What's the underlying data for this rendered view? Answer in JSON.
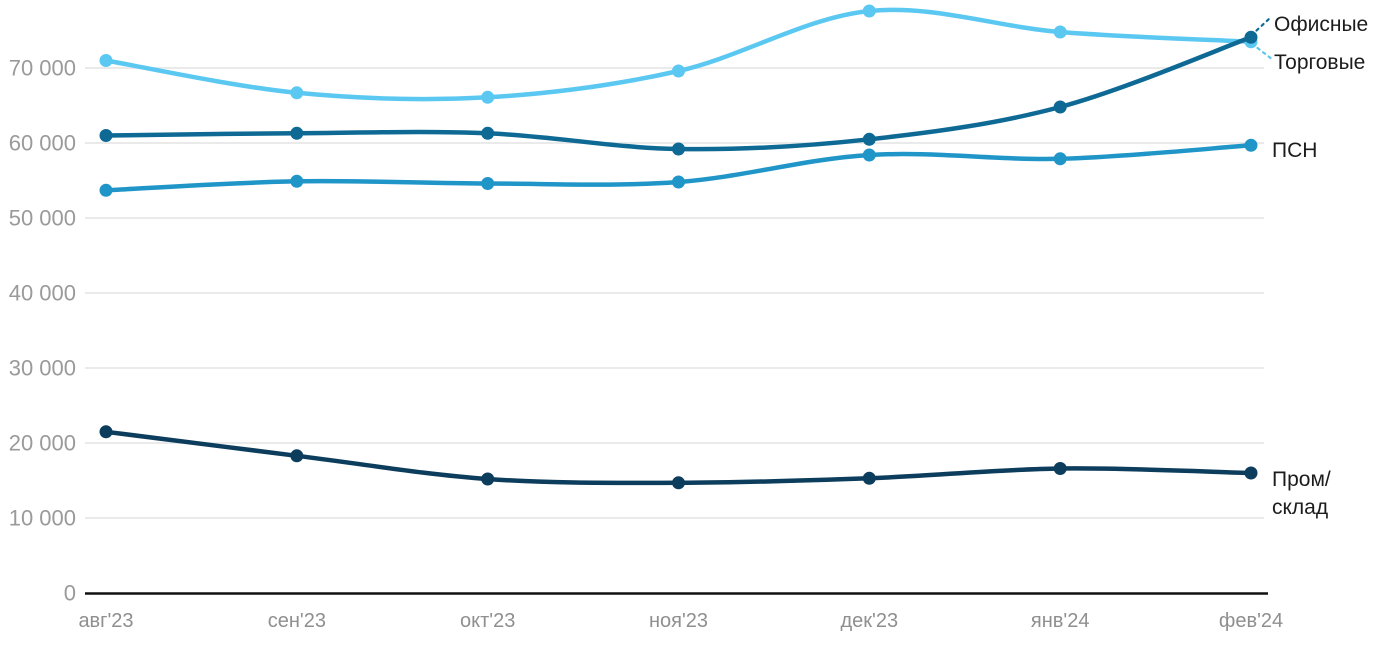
{
  "chart_data": {
    "type": "line",
    "title": "",
    "xlabel": "",
    "ylabel": "",
    "categories": [
      "авг'23",
      "сен'23",
      "окт'23",
      "ноя'23",
      "дек'23",
      "янв'24",
      "фев'24"
    ],
    "series": [
      {
        "id": "retail",
        "name": "Торговые",
        "label_lines": [
          "Торговые"
        ],
        "color": "#5bc8f2",
        "values": [
          71000,
          66700,
          66100,
          69600,
          77600,
          74800,
          73500
        ]
      },
      {
        "id": "psn",
        "name": "ПСН",
        "label_lines": [
          "ПСН"
        ],
        "color": "#2095c8",
        "values": [
          53700,
          54900,
          54600,
          54800,
          58400,
          57900,
          59700
        ]
      },
      {
        "id": "industrial",
        "name": "Пром/склад",
        "label_lines": [
          "Пром/",
          "склад"
        ],
        "color": "#0d3d5c",
        "values": [
          21500,
          18300,
          15200,
          14700,
          15300,
          16600,
          16000
        ]
      },
      {
        "id": "offices",
        "name": "Офисные",
        "label_lines": [
          "Офисные"
        ],
        "color": "#0e6a94",
        "values": [
          61000,
          61300,
          61300,
          59200,
          60500,
          64800,
          74100
        ]
      }
    ],
    "ylim": [
      0,
      80000
    ],
    "yticks": [
      0,
      10000,
      20000,
      30000,
      40000,
      50000,
      60000,
      70000
    ],
    "ytick_labels": [
      "0",
      "10 000",
      "20 000",
      "30 000",
      "40 000",
      "50 000",
      "60 000",
      "70 000"
    ],
    "grid": "horizontal-only",
    "legend_position": "right-end-of-line-labels"
  },
  "colors": {
    "background": "#ffffff",
    "grid": "#e7e7e7",
    "axis": "#111111",
    "y_tick_text": "#9a9a9b",
    "x_tick_text": "#8f8f90",
    "series_label_text": "#1c1c1c"
  }
}
